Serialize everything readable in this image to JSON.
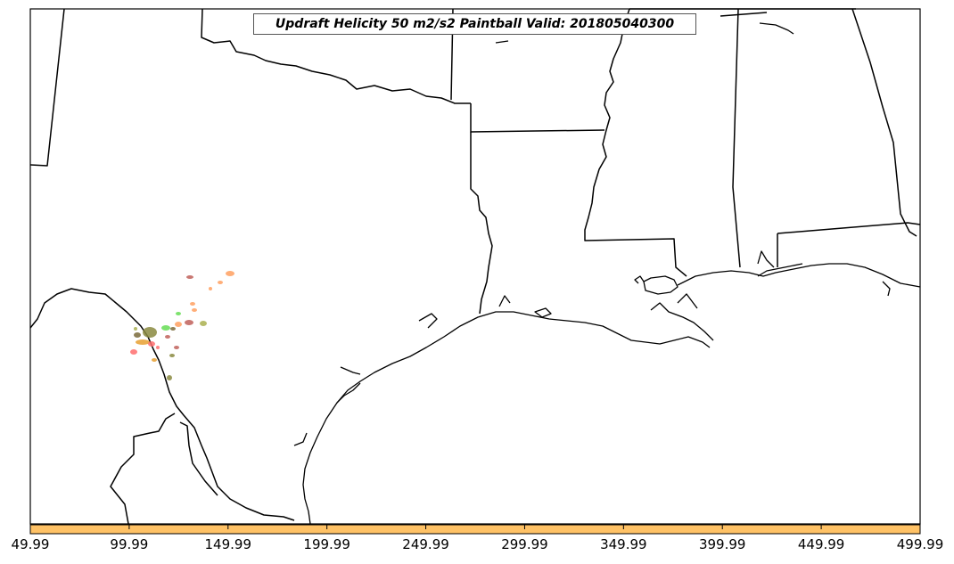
{
  "title": "Updraft Helicity 50 m2/s2 Paintball Valid: 201805040300",
  "colorbar": {
    "color": "#ffc266",
    "ticks": [
      "49.99",
      "99.99",
      "149.99",
      "199.99",
      "249.99",
      "299.99",
      "349.99",
      "399.99",
      "449.99",
      "499.99"
    ]
  },
  "paintball_colors": [
    "#ff6f6f",
    "#ffa060",
    "#e8a030",
    "#66dd55",
    "#8a8a40",
    "#aab050",
    "#c0605a",
    "#7a6a3a"
  ]
}
